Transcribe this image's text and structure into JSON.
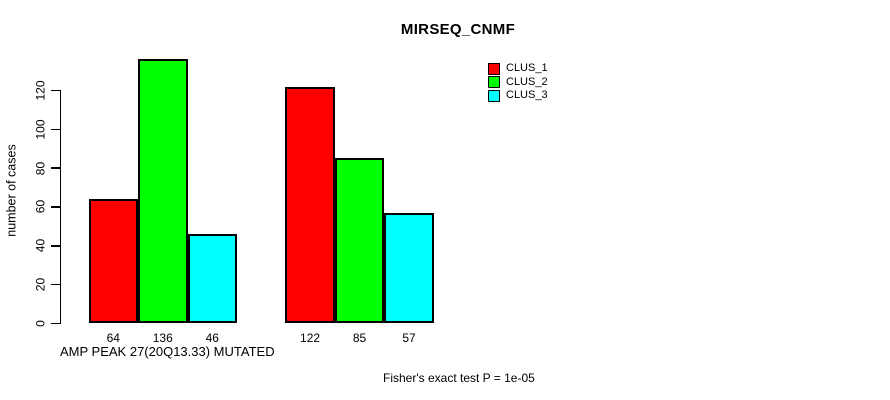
{
  "chart_data": {
    "type": "bar",
    "title": "MIRSEQ_CNMF",
    "ylabel": "number of cases",
    "xlabel": "",
    "group_labels": [
      "AMP PEAK 27(20Q13.33) MUTATED",
      ""
    ],
    "series": [
      {
        "name": "CLUS_1",
        "color": "#ff0000",
        "values": [
          64,
          122
        ]
      },
      {
        "name": "CLUS_2",
        "color": "#00ff00",
        "values": [
          136,
          85
        ]
      },
      {
        "name": "CLUS_3",
        "color": "#00ffff",
        "values": [
          46,
          57
        ]
      }
    ],
    "bar_value_labels": [
      [
        64,
        136,
        46
      ],
      [
        122,
        85,
        57
      ]
    ],
    "yticks": [
      0,
      20,
      40,
      60,
      80,
      100,
      120
    ],
    "ylim": [
      0,
      136
    ],
    "grid": false,
    "legend_position": "top-right",
    "bar_edge_color": "#000000",
    "background_color": "#ffffff",
    "annotation": "Fisher's exact test P = 1e-05"
  }
}
